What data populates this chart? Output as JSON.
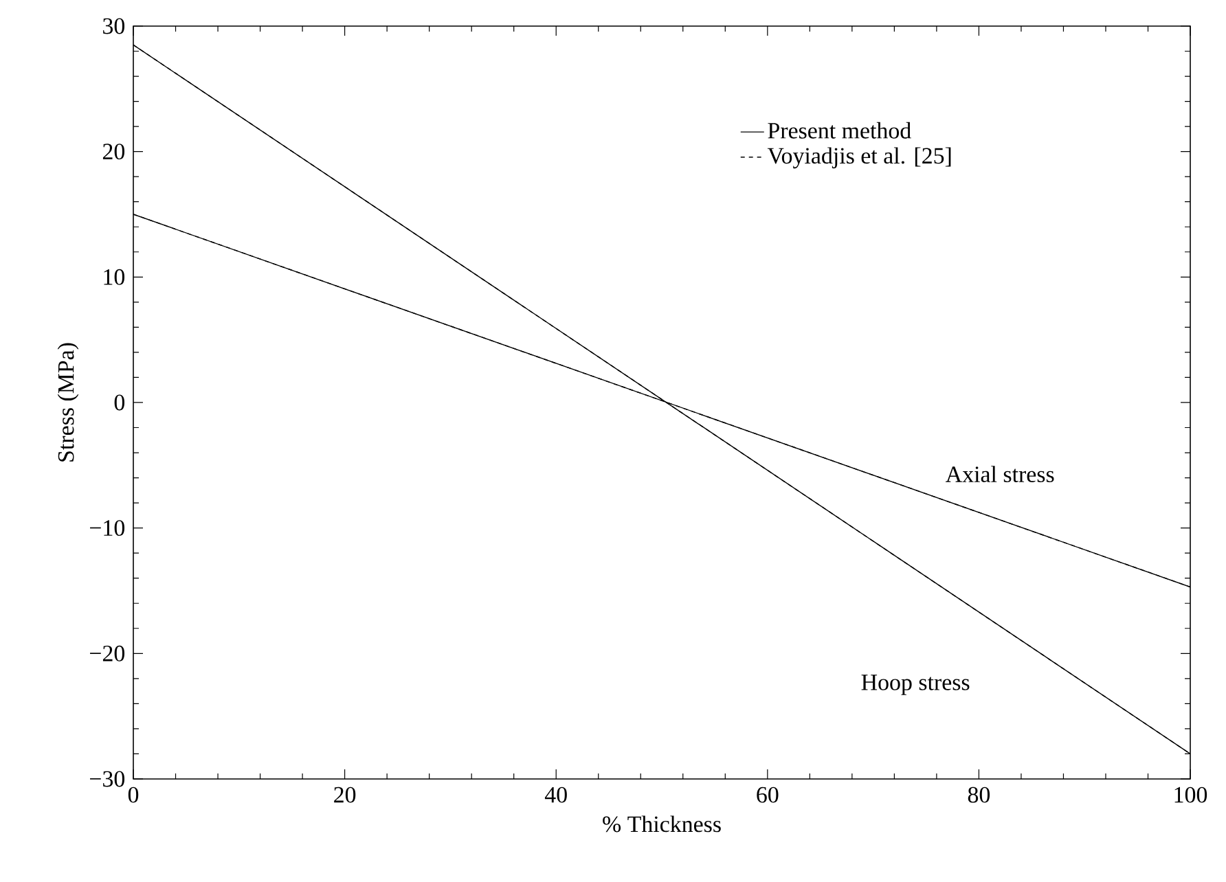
{
  "chart_data": {
    "type": "line",
    "xlabel": "% Thickness",
    "ylabel": "Stress (MPa)",
    "x": [
      0,
      100
    ],
    "series": [
      {
        "name": "Present method",
        "color": "#000000",
        "line_style": "solid",
        "values": [
          28.5,
          -28
        ]
      },
      {
        "color": "#000000",
        "line_style": "solid",
        "values": [
          15,
          -14.7
        ]
      },
      {
        "name": "Voyiadjis et al. [25]",
        "color": "#000000",
        "line_style": "dashed",
        "values": [
          28.5,
          -28
        ]
      },
      {
        "color": "#000000",
        "line_style": "dashed",
        "values": [
          15,
          -14.7
        ]
      }
    ],
    "xlim": [
      0,
      100
    ],
    "ylim": [
      -30,
      30
    ],
    "xticks": [
      0,
      20,
      40,
      60,
      80,
      100
    ],
    "yticks": [
      {
        "value": -30,
        "label": "−30"
      },
      {
        "value": -20,
        "label": "−20"
      },
      {
        "value": -10,
        "label": "−10"
      },
      0,
      10,
      20,
      30
    ],
    "annotations": [
      "Axial stress",
      "Hoop stress"
    ],
    "grid": false,
    "legend": "top right",
    "marker": "none"
  }
}
